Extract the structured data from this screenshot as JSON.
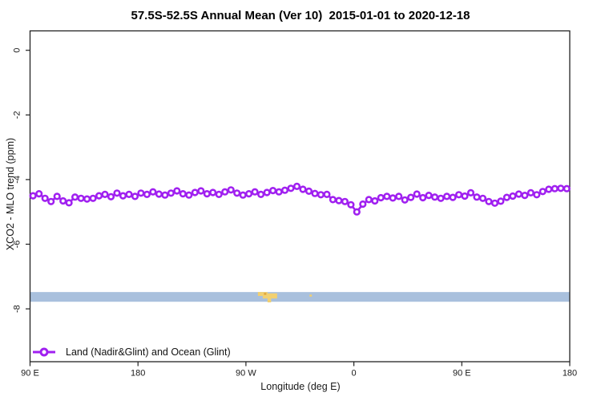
{
  "window": {
    "background": "#ffffff",
    "frame_color": "#222222"
  },
  "chart_data": {
    "type": "line",
    "title": "57.5S-52.5S Annual Mean (Ver 10)  2015-01-01 to 2020-12-18",
    "xlabel": "Longitude (deg E)",
    "ylabel": "XCO2 - MLO trend (ppm)",
    "grid": false,
    "legend_position": "bottom-left-inside",
    "x_axis_span_deg": [
      90,
      540
    ],
    "ylim": [
      -9.6,
      0.6
    ],
    "x_ticks": [
      {
        "deg": 90,
        "label": "90 E"
      },
      {
        "deg": 180,
        "label": "180"
      },
      {
        "deg": 270,
        "label": "90 W"
      },
      {
        "deg": 360,
        "label": "0"
      },
      {
        "deg": 450,
        "label": "90 E"
      },
      {
        "deg": 540,
        "label": "180"
      }
    ],
    "y_ticks": [
      {
        "value": 0,
        "label": "0"
      },
      {
        "value": -2,
        "label": "-2"
      },
      {
        "value": -4,
        "label": "-4"
      },
      {
        "value": -6,
        "label": "-6"
      },
      {
        "value": -8,
        "label": "-8"
      }
    ],
    "series": [
      {
        "name": "Land (Nadir&Glint) and Ocean (Glint)",
        "color": "#A020F0",
        "marker": "open-circle",
        "x_deg": [
          92.5,
          97.5,
          102.5,
          107.5,
          112.5,
          117.5,
          122.5,
          127.5,
          132.5,
          137.5,
          142.5,
          147.5,
          152.5,
          157.5,
          162.5,
          167.5,
          172.5,
          177.5,
          182.5,
          187.5,
          192.5,
          197.5,
          202.5,
          207.5,
          212.5,
          217.5,
          222.5,
          227.5,
          232.5,
          237.5,
          242.5,
          247.5,
          252.5,
          257.5,
          262.5,
          267.5,
          272.5,
          277.5,
          282.5,
          287.5,
          292.5,
          297.5,
          302.5,
          307.5,
          312.5,
          317.5,
          322.5,
          327.5,
          332.5,
          337.5,
          342.5,
          347.5,
          352.5,
          357.5,
          362.5,
          367.5,
          372.5,
          377.5,
          382.5,
          387.5,
          392.5,
          397.5,
          402.5,
          407.5,
          412.5,
          417.5,
          422.5,
          427.5,
          432.5,
          437.5,
          442.5,
          447.5,
          452.5,
          457.5,
          462.5,
          467.5,
          472.5,
          477.5,
          482.5,
          487.5,
          492.5,
          497.5,
          502.5,
          507.5,
          512.5,
          517.5,
          522.5,
          527.5,
          532.5,
          537.5
        ],
        "values": [
          -4.5,
          -4.44,
          -4.58,
          -4.68,
          -4.52,
          -4.66,
          -4.72,
          -4.54,
          -4.58,
          -4.6,
          -4.58,
          -4.5,
          -4.46,
          -4.53,
          -4.42,
          -4.5,
          -4.46,
          -4.52,
          -4.42,
          -4.46,
          -4.38,
          -4.45,
          -4.48,
          -4.42,
          -4.35,
          -4.44,
          -4.48,
          -4.4,
          -4.35,
          -4.44,
          -4.4,
          -4.46,
          -4.38,
          -4.32,
          -4.42,
          -4.48,
          -4.44,
          -4.38,
          -4.46,
          -4.4,
          -4.34,
          -4.38,
          -4.33,
          -4.27,
          -4.21,
          -4.3,
          -4.36,
          -4.43,
          -4.47,
          -4.46,
          -4.62,
          -4.65,
          -4.68,
          -4.78,
          -5.0,
          -4.76,
          -4.62,
          -4.66,
          -4.56,
          -4.52,
          -4.57,
          -4.52,
          -4.63,
          -4.55,
          -4.45,
          -4.56,
          -4.49,
          -4.54,
          -4.58,
          -4.52,
          -4.55,
          -4.47,
          -4.51,
          -4.41,
          -4.54,
          -4.58,
          -4.68,
          -4.73,
          -4.67,
          -4.55,
          -4.51,
          -4.45,
          -4.49,
          -4.41,
          -4.47,
          -4.37,
          -4.3,
          -4.28,
          -4.27,
          -4.28
        ]
      }
    ],
    "ocean_band": {
      "color": "#A9C0DD",
      "deg_start": 90,
      "deg_end": 540,
      "value_top": -7.48,
      "value_bottom": -7.78
    },
    "land_patches": [
      {
        "deg_start": 280,
        "deg_end": 288,
        "value_top": -7.48,
        "value_bottom": -7.6,
        "color": "#F2D070"
      },
      {
        "deg_start": 284,
        "deg_end": 296,
        "value_top": -7.52,
        "value_bottom": -7.68,
        "color": "#F2D070"
      },
      {
        "deg_start": 288,
        "deg_end": 291,
        "value_top": -7.66,
        "value_bottom": -7.8,
        "color": "#F2D070"
      },
      {
        "deg_start": 285,
        "deg_end": 287,
        "value_top": -7.5,
        "value_bottom": -7.57,
        "color": "#E2A93F"
      },
      {
        "deg_start": 323,
        "deg_end": 325,
        "value_top": -7.56,
        "value_bottom": -7.62,
        "color": "#F2D070"
      }
    ]
  },
  "legend": {
    "items": [
      {
        "label": "Land (Nadir&Glint) and Ocean (Glint)",
        "color": "#A020F0",
        "marker": "line-open-circle"
      }
    ]
  }
}
